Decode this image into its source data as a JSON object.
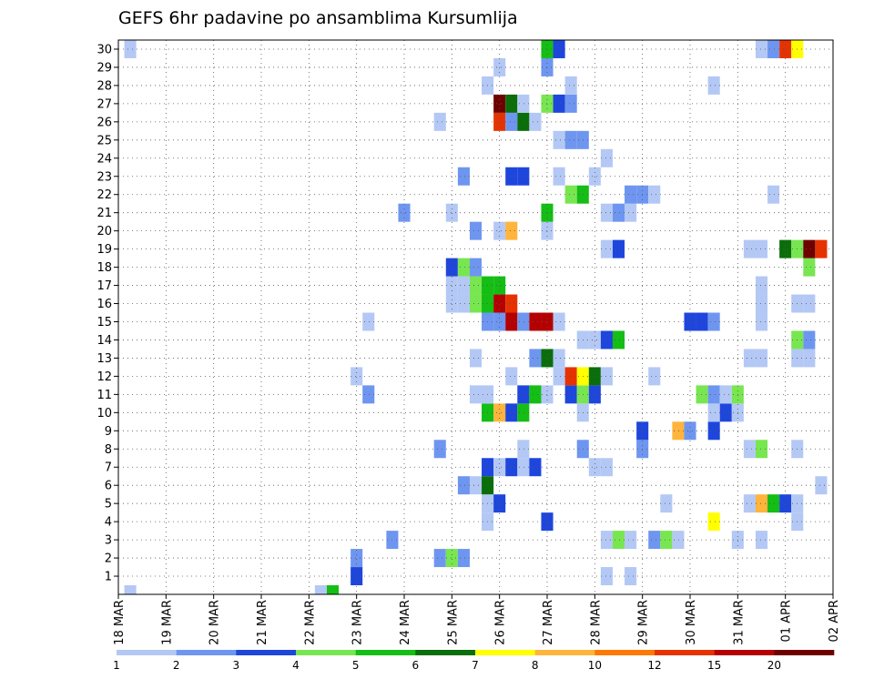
{
  "chart_data": {
    "type": "heatmap",
    "title": "GEFS 6hr padavine po ansamblima Kursumlija",
    "xlabel": "",
    "ylabel": "",
    "x_ticks": [
      "18 MAR",
      "19 MAR",
      "20 MAR",
      "21 MAR",
      "22 MAR",
      "23 MAR",
      "24 MAR",
      "25 MAR",
      "26 MAR",
      "27 MAR",
      "28 MAR",
      "29 MAR",
      "30 MAR",
      "31 MAR",
      "01 APR",
      "02 APR"
    ],
    "y_ticks": [
      "1",
      "2",
      "3",
      "4",
      "5",
      "6",
      "7",
      "8",
      "9",
      "10",
      "11",
      "12",
      "13",
      "14",
      "15",
      "16",
      "17",
      "18",
      "19",
      "20",
      "21",
      "22",
      "23",
      "24",
      "25",
      "26",
      "27",
      "28",
      "29",
      "30"
    ],
    "ylim": [
      0,
      30
    ],
    "grid": true,
    "legend": {
      "labels": [
        "1",
        "2",
        "3",
        "4",
        "5",
        "6",
        "7",
        "8",
        "10",
        "12",
        "15",
        "20"
      ],
      "colors": [
        "#b4c8f5",
        "#6e96f0",
        "#1e46dc",
        "#78e650",
        "#14be14",
        "#0a6e0a",
        "#ffff00",
        "#ffb43c",
        "#ff7800",
        "#e63200",
        "#b40000",
        "#6e0000"
      ]
    },
    "cells": [
      {
        "member": 0,
        "step": 1,
        "bin": 0
      },
      {
        "member": 0,
        "step": 17,
        "bin": 0
      },
      {
        "member": 0,
        "step": 18,
        "bin": 4
      },
      {
        "member": 1,
        "step": 20,
        "bin": 2
      },
      {
        "member": 1,
        "step": 41,
        "bin": 0
      },
      {
        "member": 1,
        "step": 43,
        "bin": 0
      },
      {
        "member": 2,
        "step": 20,
        "bin": 1
      },
      {
        "member": 2,
        "step": 27,
        "bin": 1
      },
      {
        "member": 2,
        "step": 28,
        "bin": 3
      },
      {
        "member": 2,
        "step": 29,
        "bin": 1
      },
      {
        "member": 3,
        "step": 23,
        "bin": 1
      },
      {
        "member": 3,
        "step": 41,
        "bin": 0
      },
      {
        "member": 3,
        "step": 42,
        "bin": 3
      },
      {
        "member": 3,
        "step": 43,
        "bin": 0
      },
      {
        "member": 3,
        "step": 45,
        "bin": 1
      },
      {
        "member": 3,
        "step": 46,
        "bin": 3
      },
      {
        "member": 3,
        "step": 47,
        "bin": 0
      },
      {
        "member": 3,
        "step": 52,
        "bin": 0
      },
      {
        "member": 3,
        "step": 54,
        "bin": 0
      },
      {
        "member": 4,
        "step": 31,
        "bin": 0
      },
      {
        "member": 4,
        "step": 36,
        "bin": 2
      },
      {
        "member": 4,
        "step": 50,
        "bin": 6
      },
      {
        "member": 4,
        "step": 57,
        "bin": 0
      },
      {
        "member": 5,
        "step": 31,
        "bin": 0
      },
      {
        "member": 5,
        "step": 32,
        "bin": 2
      },
      {
        "member": 5,
        "step": 46,
        "bin": 0
      },
      {
        "member": 5,
        "step": 53,
        "bin": 0
      },
      {
        "member": 5,
        "step": 54,
        "bin": 7
      },
      {
        "member": 5,
        "step": 55,
        "bin": 4
      },
      {
        "member": 5,
        "step": 56,
        "bin": 2
      },
      {
        "member": 5,
        "step": 57,
        "bin": 0
      },
      {
        "member": 6,
        "step": 29,
        "bin": 1
      },
      {
        "member": 6,
        "step": 30,
        "bin": 0
      },
      {
        "member": 6,
        "step": 31,
        "bin": 5
      },
      {
        "member": 6,
        "step": 59,
        "bin": 0
      },
      {
        "member": 7,
        "step": 31,
        "bin": 2
      },
      {
        "member": 7,
        "step": 32,
        "bin": 0
      },
      {
        "member": 7,
        "step": 33,
        "bin": 2
      },
      {
        "member": 7,
        "step": 34,
        "bin": 0
      },
      {
        "member": 7,
        "step": 35,
        "bin": 2
      },
      {
        "member": 7,
        "step": 40,
        "bin": 0
      },
      {
        "member": 7,
        "step": 41,
        "bin": 0
      },
      {
        "member": 8,
        "step": 27,
        "bin": 1
      },
      {
        "member": 8,
        "step": 34,
        "bin": 0
      },
      {
        "member": 8,
        "step": 39,
        "bin": 1
      },
      {
        "member": 8,
        "step": 44,
        "bin": 1
      },
      {
        "member": 8,
        "step": 53,
        "bin": 0
      },
      {
        "member": 8,
        "step": 54,
        "bin": 3
      },
      {
        "member": 8,
        "step": 57,
        "bin": 0
      },
      {
        "member": 9,
        "step": 44,
        "bin": 2
      },
      {
        "member": 9,
        "step": 47,
        "bin": 7
      },
      {
        "member": 9,
        "step": 48,
        "bin": 1
      },
      {
        "member": 9,
        "step": 50,
        "bin": 2
      },
      {
        "member": 10,
        "step": 31,
        "bin": 4
      },
      {
        "member": 10,
        "step": 32,
        "bin": 7
      },
      {
        "member": 10,
        "step": 33,
        "bin": 2
      },
      {
        "member": 10,
        "step": 34,
        "bin": 4
      },
      {
        "member": 10,
        "step": 39,
        "bin": 0
      },
      {
        "member": 10,
        "step": 50,
        "bin": 0
      },
      {
        "member": 10,
        "step": 51,
        "bin": 2
      },
      {
        "member": 10,
        "step": 52,
        "bin": 0
      },
      {
        "member": 11,
        "step": 21,
        "bin": 1
      },
      {
        "member": 11,
        "step": 30,
        "bin": 0
      },
      {
        "member": 11,
        "step": 31,
        "bin": 0
      },
      {
        "member": 11,
        "step": 34,
        "bin": 2
      },
      {
        "member": 11,
        "step": 35,
        "bin": 4
      },
      {
        "member": 11,
        "step": 36,
        "bin": 0
      },
      {
        "member": 11,
        "step": 38,
        "bin": 2
      },
      {
        "member": 11,
        "step": 39,
        "bin": 3
      },
      {
        "member": 11,
        "step": 40,
        "bin": 2
      },
      {
        "member": 11,
        "step": 49,
        "bin": 3
      },
      {
        "member": 11,
        "step": 50,
        "bin": 1
      },
      {
        "member": 11,
        "step": 51,
        "bin": 0
      },
      {
        "member": 11,
        "step": 52,
        "bin": 3
      },
      {
        "member": 12,
        "step": 20,
        "bin": 0
      },
      {
        "member": 12,
        "step": 33,
        "bin": 0
      },
      {
        "member": 12,
        "step": 37,
        "bin": 0
      },
      {
        "member": 12,
        "step": 38,
        "bin": 9
      },
      {
        "member": 12,
        "step": 39,
        "bin": 6
      },
      {
        "member": 12,
        "step": 40,
        "bin": 5
      },
      {
        "member": 12,
        "step": 41,
        "bin": 0
      },
      {
        "member": 12,
        "step": 45,
        "bin": 0
      },
      {
        "member": 13,
        "step": 30,
        "bin": 0
      },
      {
        "member": 13,
        "step": 35,
        "bin": 1
      },
      {
        "member": 13,
        "step": 36,
        "bin": 5
      },
      {
        "member": 13,
        "step": 37,
        "bin": 0
      },
      {
        "member": 13,
        "step": 53,
        "bin": 0
      },
      {
        "member": 13,
        "step": 54,
        "bin": 0
      },
      {
        "member": 13,
        "step": 57,
        "bin": 0
      },
      {
        "member": 13,
        "step": 58,
        "bin": 0
      },
      {
        "member": 14,
        "step": 39,
        "bin": 0
      },
      {
        "member": 14,
        "step": 40,
        "bin": 0
      },
      {
        "member": 14,
        "step": 41,
        "bin": 2
      },
      {
        "member": 14,
        "step": 42,
        "bin": 4
      },
      {
        "member": 14,
        "step": 57,
        "bin": 3
      },
      {
        "member": 14,
        "step": 58,
        "bin": 1
      },
      {
        "member": 15,
        "step": 21,
        "bin": 0
      },
      {
        "member": 15,
        "step": 31,
        "bin": 1
      },
      {
        "member": 15,
        "step": 32,
        "bin": 1
      },
      {
        "member": 15,
        "step": 33,
        "bin": 10
      },
      {
        "member": 15,
        "step": 34,
        "bin": 1
      },
      {
        "member": 15,
        "step": 35,
        "bin": 10
      },
      {
        "member": 15,
        "step": 36,
        "bin": 10
      },
      {
        "member": 15,
        "step": 37,
        "bin": 0
      },
      {
        "member": 15,
        "step": 48,
        "bin": 2
      },
      {
        "member": 15,
        "step": 49,
        "bin": 2
      },
      {
        "member": 15,
        "step": 50,
        "bin": 1
      },
      {
        "member": 15,
        "step": 54,
        "bin": 0
      },
      {
        "member": 16,
        "step": 28,
        "bin": 0
      },
      {
        "member": 16,
        "step": 29,
        "bin": 0
      },
      {
        "member": 16,
        "step": 30,
        "bin": 3
      },
      {
        "member": 16,
        "step": 31,
        "bin": 4
      },
      {
        "member": 16,
        "step": 32,
        "bin": 10
      },
      {
        "member": 16,
        "step": 33,
        "bin": 9
      },
      {
        "member": 16,
        "step": 54,
        "bin": 0
      },
      {
        "member": 16,
        "step": 57,
        "bin": 0
      },
      {
        "member": 16,
        "step": 58,
        "bin": 0
      },
      {
        "member": 17,
        "step": 28,
        "bin": 0
      },
      {
        "member": 17,
        "step": 29,
        "bin": 0
      },
      {
        "member": 17,
        "step": 30,
        "bin": 3
      },
      {
        "member": 17,
        "step": 31,
        "bin": 4
      },
      {
        "member": 17,
        "step": 32,
        "bin": 4
      },
      {
        "member": 17,
        "step": 54,
        "bin": 0
      },
      {
        "member": 18,
        "step": 28,
        "bin": 2
      },
      {
        "member": 18,
        "step": 29,
        "bin": 3
      },
      {
        "member": 18,
        "step": 30,
        "bin": 1
      },
      {
        "member": 18,
        "step": 58,
        "bin": 3
      },
      {
        "member": 19,
        "step": 41,
        "bin": 0
      },
      {
        "member": 19,
        "step": 42,
        "bin": 2
      },
      {
        "member": 19,
        "step": 53,
        "bin": 0
      },
      {
        "member": 19,
        "step": 54,
        "bin": 0
      },
      {
        "member": 19,
        "step": 56,
        "bin": 5
      },
      {
        "member": 19,
        "step": 57,
        "bin": 3
      },
      {
        "member": 19,
        "step": 58,
        "bin": 11
      },
      {
        "member": 19,
        "step": 59,
        "bin": 9
      },
      {
        "member": 20,
        "step": 30,
        "bin": 1
      },
      {
        "member": 20,
        "step": 32,
        "bin": 0
      },
      {
        "member": 20,
        "step": 33,
        "bin": 7
      },
      {
        "member": 20,
        "step": 36,
        "bin": 0
      },
      {
        "member": 21,
        "step": 24,
        "bin": 1
      },
      {
        "member": 21,
        "step": 28,
        "bin": 0
      },
      {
        "member": 21,
        "step": 36,
        "bin": 4
      },
      {
        "member": 21,
        "step": 41,
        "bin": 0
      },
      {
        "member": 21,
        "step": 42,
        "bin": 1
      },
      {
        "member": 21,
        "step": 43,
        "bin": 0
      },
      {
        "member": 22,
        "step": 38,
        "bin": 3
      },
      {
        "member": 22,
        "step": 39,
        "bin": 4
      },
      {
        "member": 22,
        "step": 43,
        "bin": 1
      },
      {
        "member": 22,
        "step": 44,
        "bin": 1
      },
      {
        "member": 22,
        "step": 45,
        "bin": 0
      },
      {
        "member": 22,
        "step": 55,
        "bin": 0
      },
      {
        "member": 23,
        "step": 29,
        "bin": 1
      },
      {
        "member": 23,
        "step": 33,
        "bin": 2
      },
      {
        "member": 23,
        "step": 34,
        "bin": 2
      },
      {
        "member": 23,
        "step": 37,
        "bin": 0
      },
      {
        "member": 23,
        "step": 40,
        "bin": 0
      },
      {
        "member": 24,
        "step": 41,
        "bin": 0
      },
      {
        "member": 25,
        "step": 37,
        "bin": 0
      },
      {
        "member": 25,
        "step": 38,
        "bin": 1
      },
      {
        "member": 25,
        "step": 39,
        "bin": 1
      },
      {
        "member": 26,
        "step": 27,
        "bin": 0
      },
      {
        "member": 26,
        "step": 32,
        "bin": 9
      },
      {
        "member": 26,
        "step": 33,
        "bin": 1
      },
      {
        "member": 26,
        "step": 34,
        "bin": 5
      },
      {
        "member": 26,
        "step": 35,
        "bin": 0
      },
      {
        "member": 27,
        "step": 32,
        "bin": 11
      },
      {
        "member": 27,
        "step": 33,
        "bin": 5
      },
      {
        "member": 27,
        "step": 34,
        "bin": 0
      },
      {
        "member": 27,
        "step": 36,
        "bin": 3
      },
      {
        "member": 27,
        "step": 37,
        "bin": 2
      },
      {
        "member": 27,
        "step": 38,
        "bin": 1
      },
      {
        "member": 28,
        "step": 31,
        "bin": 0
      },
      {
        "member": 28,
        "step": 38,
        "bin": 0
      },
      {
        "member": 28,
        "step": 50,
        "bin": 0
      },
      {
        "member": 29,
        "step": 32,
        "bin": 0
      },
      {
        "member": 29,
        "step": 36,
        "bin": 1
      },
      {
        "member": 30,
        "step": 1,
        "bin": 0
      },
      {
        "member": 30,
        "step": 36,
        "bin": 4
      },
      {
        "member": 30,
        "step": 37,
        "bin": 2
      },
      {
        "member": 30,
        "step": 54,
        "bin": 0
      },
      {
        "member": 30,
        "step": 55,
        "bin": 1
      },
      {
        "member": 30,
        "step": 56,
        "bin": 9
      },
      {
        "member": 30,
        "step": 57,
        "bin": 6
      }
    ]
  }
}
